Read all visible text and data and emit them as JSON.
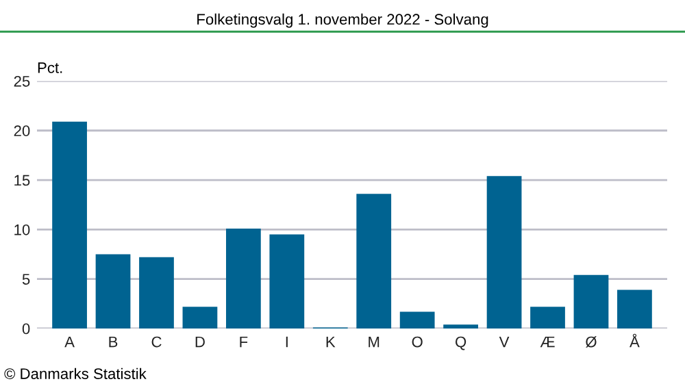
{
  "chart_data": {
    "type": "bar",
    "title": "Folketingsvalg 1. november 2022 - Solvang",
    "ylabel": "Pct.",
    "categories": [
      "A",
      "B",
      "C",
      "D",
      "F",
      "I",
      "K",
      "M",
      "O",
      "Q",
      "V",
      "Æ",
      "Ø",
      "Å"
    ],
    "values": [
      20.9,
      7.5,
      7.2,
      2.2,
      10.1,
      9.5,
      0.1,
      13.6,
      1.7,
      0.4,
      15.4,
      2.2,
      5.4,
      3.9
    ],
    "color": "#006391",
    "ylim": [
      0,
      25
    ],
    "yticks": [
      0,
      5,
      10,
      15,
      20,
      25
    ],
    "grid": "y",
    "annotations": [
      "© Danmarks Statistik"
    ]
  }
}
